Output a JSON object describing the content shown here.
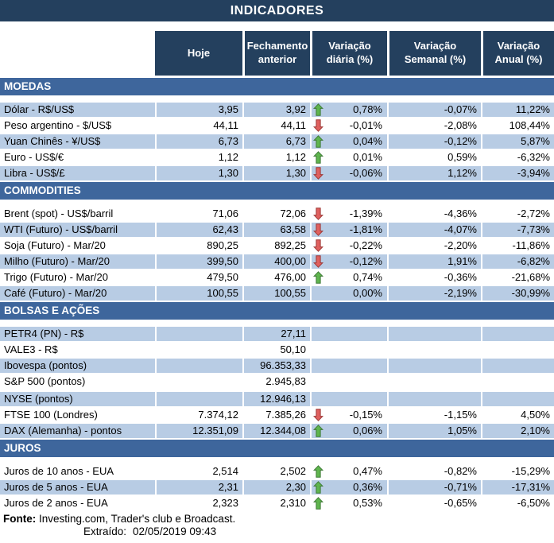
{
  "header": {
    "title": "INDICADORES"
  },
  "table": {
    "columns": [
      "Hoje",
      "Fechamento anterior",
      "Variação diária (%)",
      "Variação Semanal (%)",
      "Variação Anual (%)"
    ],
    "sections": [
      {
        "id": "moedas",
        "label": "MOEDAS",
        "rows": [
          {
            "label": "Dólar - R$/US$",
            "hoje": "3,95",
            "fechamento": "3,92",
            "arrow": "up",
            "var_diaria": "0,78%",
            "var_semanal": "-0,07%",
            "var_anual": "11,22%"
          },
          {
            "label": "Peso argentino - $/US$",
            "hoje": "44,11",
            "fechamento": "44,11",
            "arrow": "down",
            "var_diaria": "-0,01%",
            "var_semanal": "-2,08%",
            "var_anual": "108,44%"
          },
          {
            "label": "Yuan Chinês - ¥/US$",
            "hoje": "6,73",
            "fechamento": "6,73",
            "arrow": "up",
            "var_diaria": "0,04%",
            "var_semanal": "-0,12%",
            "var_anual": "5,87%"
          },
          {
            "label": "Euro - US$/€",
            "hoje": "1,12",
            "fechamento": "1,12",
            "arrow": "up",
            "var_diaria": "0,01%",
            "var_semanal": "0,59%",
            "var_anual": "-6,32%"
          },
          {
            "label": "Libra - US$/£",
            "hoje": "1,30",
            "fechamento": "1,30",
            "arrow": "down",
            "var_diaria": "-0,06%",
            "var_semanal": "1,12%",
            "var_anual": "-3,94%"
          }
        ]
      },
      {
        "id": "commodities",
        "label": "COMMODITIES",
        "rows": [
          {
            "label": "Brent (spot) - US$/barril",
            "hoje": "71,06",
            "fechamento": "72,06",
            "arrow": "down",
            "var_diaria": "-1,39%",
            "var_semanal": "-4,36%",
            "var_anual": "-2,72%"
          },
          {
            "label": "WTI (Futuro) - US$/barril",
            "hoje": "62,43",
            "fechamento": "63,58",
            "arrow": "down",
            "var_diaria": "-1,81%",
            "var_semanal": "-4,07%",
            "var_anual": "-7,73%"
          },
          {
            "label": "Soja (Futuro) - Mar/20",
            "hoje": "890,25",
            "fechamento": "892,25",
            "arrow": "down",
            "var_diaria": "-0,22%",
            "var_semanal": "-2,20%",
            "var_anual": "-11,86%"
          },
          {
            "label": "Milho (Futuro) - Mar/20",
            "hoje": "399,50",
            "fechamento": "400,00",
            "arrow": "down",
            "var_diaria": "-0,12%",
            "var_semanal": "1,91%",
            "var_anual": "-6,82%"
          },
          {
            "label": "Trigo (Futuro) - Mar/20",
            "hoje": "479,50",
            "fechamento": "476,00",
            "arrow": "up",
            "var_diaria": "0,74%",
            "var_semanal": "-0,36%",
            "var_anual": "-21,68%"
          },
          {
            "label": "Café (Futuro) - Mar/20",
            "hoje": "100,55",
            "fechamento": "100,55",
            "arrow": null,
            "var_diaria": "0,00%",
            "var_semanal": "-2,19%",
            "var_anual": "-30,99%"
          }
        ]
      },
      {
        "id": "bolsas",
        "label": "BOLSAS E AÇÕES",
        "rows": [
          {
            "label": "PETR4 (PN) - R$",
            "hoje": "",
            "fechamento": "27,11",
            "arrow": null,
            "var_diaria": "",
            "var_semanal": "",
            "var_anual": ""
          },
          {
            "label": "VALE3 - R$",
            "hoje": "",
            "fechamento": "50,10",
            "arrow": null,
            "var_diaria": "",
            "var_semanal": "",
            "var_anual": ""
          },
          {
            "label": "Ibovespa (pontos)",
            "hoje": "",
            "fechamento": "96.353,33",
            "arrow": null,
            "var_diaria": "",
            "var_semanal": "",
            "var_anual": ""
          },
          {
            "label": "S&P 500 (pontos)",
            "hoje": "",
            "fechamento": "2.945,83",
            "arrow": null,
            "var_diaria": "",
            "var_semanal": "",
            "var_anual": ""
          },
          {
            "label": "NYSE (pontos)",
            "hoje": "",
            "fechamento": "12.946,13",
            "arrow": null,
            "var_diaria": "",
            "var_semanal": "",
            "var_anual": "",
            "spacer_before": true
          },
          {
            "label": "FTSE 100 (Londres)",
            "hoje": "7.374,12",
            "fechamento": "7.385,26",
            "arrow": "down",
            "var_diaria": "-0,15%",
            "var_semanal": "-1,15%",
            "var_anual": "4,50%"
          },
          {
            "label": "DAX (Alemanha) - pontos",
            "hoje": "12.351,09",
            "fechamento": "12.344,08",
            "arrow": "up",
            "var_diaria": "0,06%",
            "var_semanal": "1,05%",
            "var_anual": "2,10%"
          }
        ]
      },
      {
        "id": "juros",
        "label": "JUROS",
        "rows": [
          {
            "label": "Juros de 10 anos - EUA",
            "hoje": "2,514",
            "fechamento": "2,502",
            "arrow": "up",
            "var_diaria": "0,47%",
            "var_semanal": "-0,82%",
            "var_anual": "-15,29%"
          },
          {
            "label": "Juros de 5 anos - EUA",
            "hoje": "2,31",
            "fechamento": "2,30",
            "arrow": "up",
            "var_diaria": "0,36%",
            "var_semanal": "-0,71%",
            "var_anual": "-17,31%"
          },
          {
            "label": "Juros de 2 anos - EUA",
            "hoje": "2,323",
            "fechamento": "2,310",
            "arrow": "up",
            "var_diaria": "0,53%",
            "var_semanal": "-0,65%",
            "var_anual": "-6,50%"
          }
        ]
      }
    ]
  },
  "footer": {
    "fonte_label": "Fonte:",
    "fonte_text": " Investing.com, Trader's club e Broadcast.",
    "extraido_label": "Extraído:",
    "extraido_value": "02/05/2019 09:43"
  },
  "colors": {
    "title_bar": "#24405e",
    "section_band": "#3e669c",
    "row_alt": "#b8cce4",
    "arrow_up_fill": "#5fb54e",
    "arrow_up_border": "#3e7a36",
    "arrow_down_fill": "#e0605e",
    "arrow_down_border": "#9c3836"
  },
  "icons": {
    "up": "arrow-up-icon",
    "down": "arrow-down-icon"
  }
}
